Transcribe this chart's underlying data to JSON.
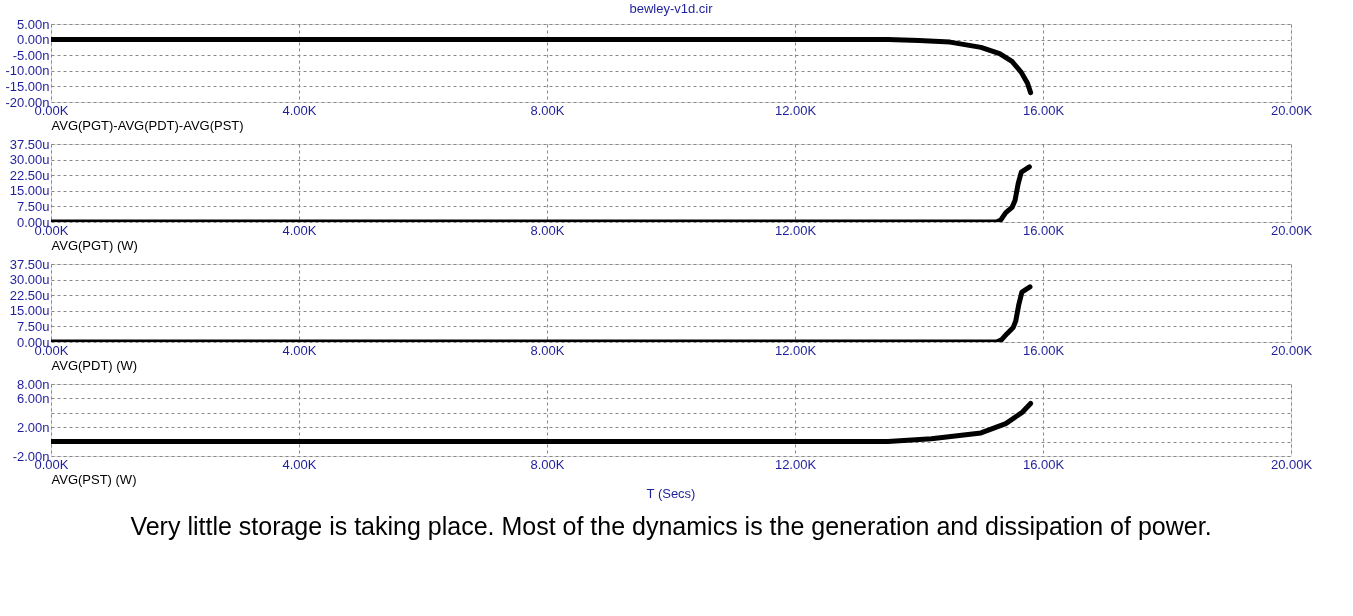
{
  "chart_data": [
    {
      "type": "line",
      "title": "bewley-v1d.cir",
      "xlabel": "AVG(PGT)-AVG(PDT)-AVG(PST)",
      "x": [
        0,
        13500,
        14000,
        14500,
        15000,
        15300,
        15500,
        15650,
        15750,
        15800
      ],
      "series": [
        {
          "color": "#000000",
          "values": [
            0,
            0,
            -0.3,
            -0.8,
            -2.5,
            -4.5,
            -7,
            -10.5,
            -14,
            -17
          ]
        }
      ],
      "xlim": [
        0,
        20000
      ],
      "xticks": [
        {
          "value": 0,
          "label": "0.00K"
        },
        {
          "value": 4000,
          "label": "4.00K"
        },
        {
          "value": 8000,
          "label": "8.00K"
        },
        {
          "value": 12000,
          "label": "12.00K"
        },
        {
          "value": 16000,
          "label": "16.00K"
        },
        {
          "value": 20000,
          "label": "20.00K"
        }
      ],
      "ylim": [
        -20,
        5
      ],
      "yticks": [
        {
          "value": -20,
          "label": "-20.00n"
        },
        {
          "value": -15,
          "label": "-15.00n"
        },
        {
          "value": -10,
          "label": "-10.00n"
        },
        {
          "value": -5,
          "label": "-5.00n"
        },
        {
          "value": 0,
          "label": "0.00n"
        },
        {
          "value": 5,
          "label": "5.00n"
        }
      ],
      "grid": true,
      "line_style": "solid"
    },
    {
      "type": "line",
      "xlabel": "AVG(PGT) (W)",
      "x": [
        0,
        15250,
        15320,
        15400,
        15500,
        15550,
        15600,
        15650,
        15780
      ],
      "series": [
        {
          "color": "#000000",
          "values": [
            0,
            0,
            1,
            4.5,
            7,
            10.5,
            18.5,
            24,
            26.5
          ]
        }
      ],
      "xlim": [
        0,
        20000
      ],
      "xticks": [
        {
          "value": 0,
          "label": "0.00K"
        },
        {
          "value": 4000,
          "label": "4.00K"
        },
        {
          "value": 8000,
          "label": "8.00K"
        },
        {
          "value": 12000,
          "label": "12.00K"
        },
        {
          "value": 16000,
          "label": "16.00K"
        },
        {
          "value": 20000,
          "label": "20.00K"
        }
      ],
      "ylim": [
        0,
        37.5
      ],
      "yticks": [
        {
          "value": 0,
          "label": "0.00u"
        },
        {
          "value": 7.5,
          "label": "7.50u"
        },
        {
          "value": 15,
          "label": "15.00u"
        },
        {
          "value": 22.5,
          "label": "22.50u"
        },
        {
          "value": 30,
          "label": "30.00u"
        },
        {
          "value": 37.5,
          "label": "37.50u"
        }
      ],
      "grid": true,
      "line_style": "solid"
    },
    {
      "type": "line",
      "xlabel": "AVG(PDT) (W)",
      "x": [
        0,
        15250,
        15330,
        15420,
        15520,
        15560,
        15610,
        15660,
        15790
      ],
      "series": [
        {
          "color": "#000000",
          "values": [
            0,
            0,
            1,
            4,
            7,
            10,
            18,
            24,
            26.5
          ]
        }
      ],
      "xlim": [
        0,
        20000
      ],
      "xticks": [
        {
          "value": 0,
          "label": "0.00K"
        },
        {
          "value": 4000,
          "label": "4.00K"
        },
        {
          "value": 8000,
          "label": "8.00K"
        },
        {
          "value": 12000,
          "label": "12.00K"
        },
        {
          "value": 16000,
          "label": "16.00K"
        },
        {
          "value": 20000,
          "label": "20.00K"
        }
      ],
      "ylim": [
        0,
        37.5
      ],
      "yticks": [
        {
          "value": 0,
          "label": "0.00u"
        },
        {
          "value": 7.5,
          "label": "7.50u"
        },
        {
          "value": 15,
          "label": "15.00u"
        },
        {
          "value": 22.5,
          "label": "22.50u"
        },
        {
          "value": 30,
          "label": "30.00u"
        },
        {
          "value": 37.5,
          "label": "37.50u"
        }
      ],
      "grid": true,
      "line_style": "solid"
    },
    {
      "type": "line",
      "xlabel": "AVG(PST) (W)",
      "annotations": [
        "T (Secs)",
        "Very little storage is taking place. Most of the dynamics is the generation and dissipation of power."
      ],
      "x": [
        0,
        13500,
        14200,
        15000,
        15400,
        15670,
        15800
      ],
      "series": [
        {
          "color": "#000000",
          "values": [
            0,
            0,
            0.4,
            1.2,
            2.5,
            4.1,
            5.3
          ]
        }
      ],
      "xlim": [
        0,
        20000
      ],
      "xticks": [
        {
          "value": 0,
          "label": "0.00K"
        },
        {
          "value": 4000,
          "label": "4.00K"
        },
        {
          "value": 8000,
          "label": "8.00K"
        },
        {
          "value": 12000,
          "label": "12.00K"
        },
        {
          "value": 16000,
          "label": "16.00K"
        },
        {
          "value": 20000,
          "label": "20.00K"
        }
      ],
      "ylim": [
        -2,
        8
      ],
      "yticks": [
        {
          "value": -2,
          "label": "-2.00n"
        },
        {
          "value": 0,
          "label": null
        },
        {
          "value": 2,
          "label": "2.00n"
        },
        {
          "value": 4,
          "label": null
        },
        {
          "value": 6,
          "label": "6.00n"
        },
        {
          "value": 8,
          "label": "8.00n"
        }
      ],
      "grid": true,
      "line_style": "solid"
    }
  ]
}
